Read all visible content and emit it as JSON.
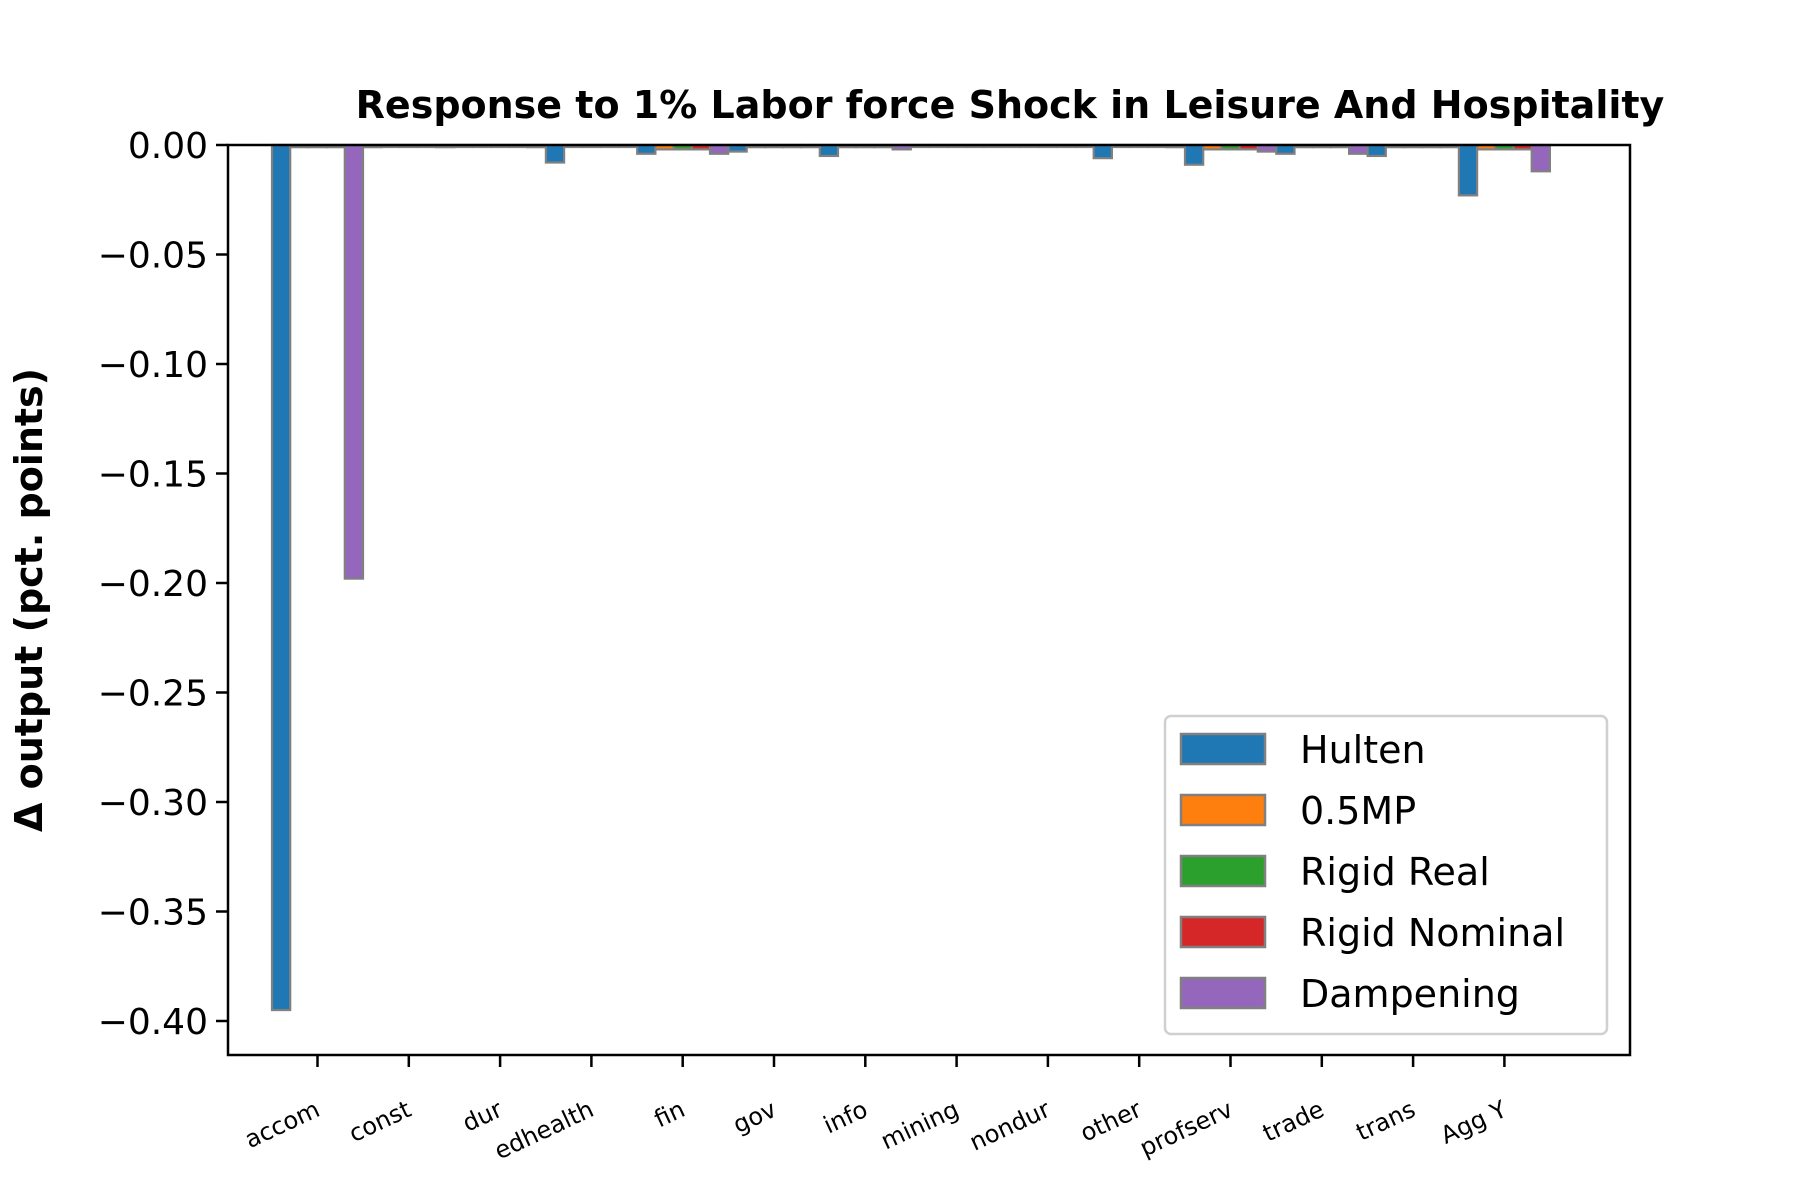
{
  "chart_data": {
    "type": "bar",
    "title": "Response to 1% Labor force Shock in Leisure And Hospitality",
    "xlabel": "",
    "ylabel": "Δ output (pct. points)",
    "ylim": [
      -0.415,
      0.0
    ],
    "yticks": [
      "0.00",
      "−0.05",
      "−0.10",
      "−0.15",
      "−0.20",
      "−0.25",
      "−0.30",
      "−0.35",
      "−0.40"
    ],
    "ytick_values": [
      0.0,
      -0.05,
      -0.1,
      -0.15,
      -0.2,
      -0.25,
      -0.3,
      -0.35,
      -0.4
    ],
    "categories": [
      "accom",
      "const",
      "dur",
      "edhealth",
      "fin",
      "gov",
      "info",
      "mining",
      "nondur",
      "other",
      "profserv",
      "trade",
      "trans",
      "Agg Y"
    ],
    "legend_position": "lower-right",
    "grid": false,
    "bar_edge_color": "#808080",
    "series": [
      {
        "name": "Hulten",
        "color": "#1f77b4",
        "values": [
          -0.395,
          -0.001,
          -0.0005,
          -0.008,
          -0.004,
          -0.003,
          -0.005,
          -0.0005,
          -0.0005,
          -0.006,
          -0.009,
          -0.004,
          -0.005,
          -0.023
        ]
      },
      {
        "name": "0.5MP",
        "color": "#ff7f0e",
        "values": [
          -0.001,
          -0.0005,
          -0.0005,
          -0.0005,
          -0.002,
          -0.001,
          -0.001,
          -0.0005,
          -0.0005,
          -0.0005,
          -0.002,
          -0.001,
          -0.001,
          -0.002
        ]
      },
      {
        "name": "Rigid Real",
        "color": "#2ca02c",
        "values": [
          -0.001,
          -0.0005,
          -0.0005,
          -0.0005,
          -0.002,
          -0.001,
          -0.001,
          -0.0005,
          -0.0005,
          -0.0005,
          -0.002,
          -0.001,
          -0.001,
          -0.002
        ]
      },
      {
        "name": "Rigid Nominal",
        "color": "#d62728",
        "values": [
          -0.001,
          -0.0005,
          -0.0005,
          -0.0005,
          -0.002,
          -0.001,
          -0.001,
          -0.0005,
          -0.0005,
          -0.0005,
          -0.002,
          -0.001,
          -0.001,
          -0.002
        ]
      },
      {
        "name": "Dampening",
        "color": "#9467bd",
        "values": [
          -0.198,
          -0.001,
          -0.001,
          -0.0005,
          -0.004,
          -0.001,
          -0.002,
          -0.0005,
          -0.0005,
          -0.001,
          -0.003,
          -0.004,
          -0.001,
          -0.012
        ]
      }
    ]
  }
}
